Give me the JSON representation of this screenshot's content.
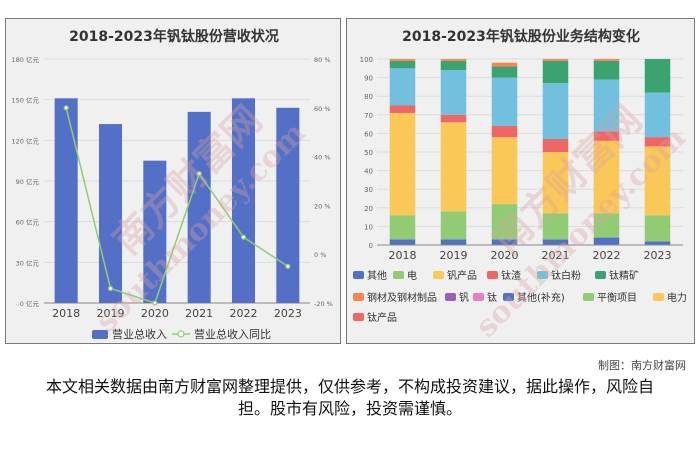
{
  "left_chart": {
    "title": "2018-2023年钒钛股份营收状况",
    "chart_data": {
      "type": "bar",
      "title": "2018-2023年钒钛股份营收状况",
      "categories": [
        "2018",
        "2019",
        "2020",
        "2021",
        "2022",
        "2023"
      ],
      "series": [
        {
          "name": "营业总收入",
          "kind": "bar",
          "axis": "left",
          "unit": "亿元",
          "color": "#5470c6",
          "values": [
            151,
            132,
            105,
            141,
            151,
            144
          ]
        },
        {
          "name": "营业总收入同比",
          "kind": "line",
          "axis": "right",
          "unit": "%",
          "color": "#91cc75",
          "values": [
            60,
            -14,
            -20,
            33,
            7,
            -5
          ]
        }
      ],
      "y_left": {
        "min": 0,
        "max": 180,
        "ticks": [
          "0 亿元",
          "30 亿元",
          "60 亿元",
          "90 亿元",
          "120 亿元",
          "150 亿元",
          "180 亿元"
        ]
      },
      "y_right": {
        "min": -20,
        "max": 80,
        "ticks": [
          "-20 %",
          "0 %",
          "20 %",
          "40 %",
          "60 %",
          "80 %"
        ]
      },
      "legend": [
        "营业总收入",
        "营业总收入同比"
      ]
    }
  },
  "right_chart": {
    "title": "2018-2023年钒钛股份业务结构变化",
    "chart_data": {
      "type": "bar",
      "stacked": true,
      "percent": true,
      "title": "2018-2023年钒钛股份业务结构变化",
      "categories": [
        "2018",
        "2019",
        "2020",
        "2021",
        "2022",
        "2023"
      ],
      "y_ticks": [
        "0",
        "10",
        "20",
        "30",
        "40",
        "50",
        "60",
        "70",
        "80",
        "90",
        "100"
      ],
      "series": [
        {
          "name": "其他",
          "color": "#5470c6",
          "values": [
            3,
            3,
            3,
            3,
            4,
            2
          ]
        },
        {
          "name": "电",
          "color": "#91cc75",
          "values": [
            13,
            15,
            19,
            14,
            13,
            14
          ]
        },
        {
          "name": "钒产品",
          "color": "#fac858",
          "values": [
            55,
            48,
            36,
            33,
            39,
            37
          ]
        },
        {
          "name": "钛渣",
          "color": "#ee6666",
          "values": [
            4,
            4,
            6,
            7,
            5,
            5
          ]
        },
        {
          "name": "钛白粉",
          "color": "#73c0de",
          "values": [
            20,
            24,
            26,
            30,
            28,
            24
          ]
        },
        {
          "name": "钛精矿",
          "color": "#3ba272",
          "values": [
            4,
            5,
            6,
            12,
            10,
            18
          ]
        },
        {
          "name": "钢材及钢材制品",
          "color": "#fc8452",
          "values": [
            1,
            1,
            2,
            1,
            1,
            0
          ]
        },
        {
          "name": "钒",
          "color": "#9a60b4",
          "values": [
            0,
            0,
            0,
            0,
            0,
            0
          ]
        },
        {
          "name": "钛",
          "color": "#ea7ccc",
          "values": [
            0,
            0,
            0,
            0,
            0,
            0
          ]
        },
        {
          "name": "其他(补充)",
          "color": "#5470c6",
          "values": [
            0,
            0,
            0,
            0,
            0,
            0
          ]
        },
        {
          "name": "平衡项目",
          "color": "#91cc75",
          "values": [
            0,
            0,
            0,
            0,
            0,
            0
          ]
        },
        {
          "name": "电力",
          "color": "#fac858",
          "values": [
            0,
            0,
            0,
            0,
            0,
            0
          ]
        },
        {
          "name": "钛产品",
          "color": "#ee6666",
          "values": [
            0,
            0,
            0,
            0,
            0,
            0
          ]
        }
      ]
    }
  },
  "footer": {
    "credit": "制图：南方财富网",
    "disclaimer": "本文相关数据由南方财富网整理提供，仅供参考，不构成投资建议，据此操作，风险自担。股市有风险，投资需谨慎。"
  },
  "watermark": {
    "text_cn": "南方财富网",
    "text_en": "southmoney.com"
  }
}
